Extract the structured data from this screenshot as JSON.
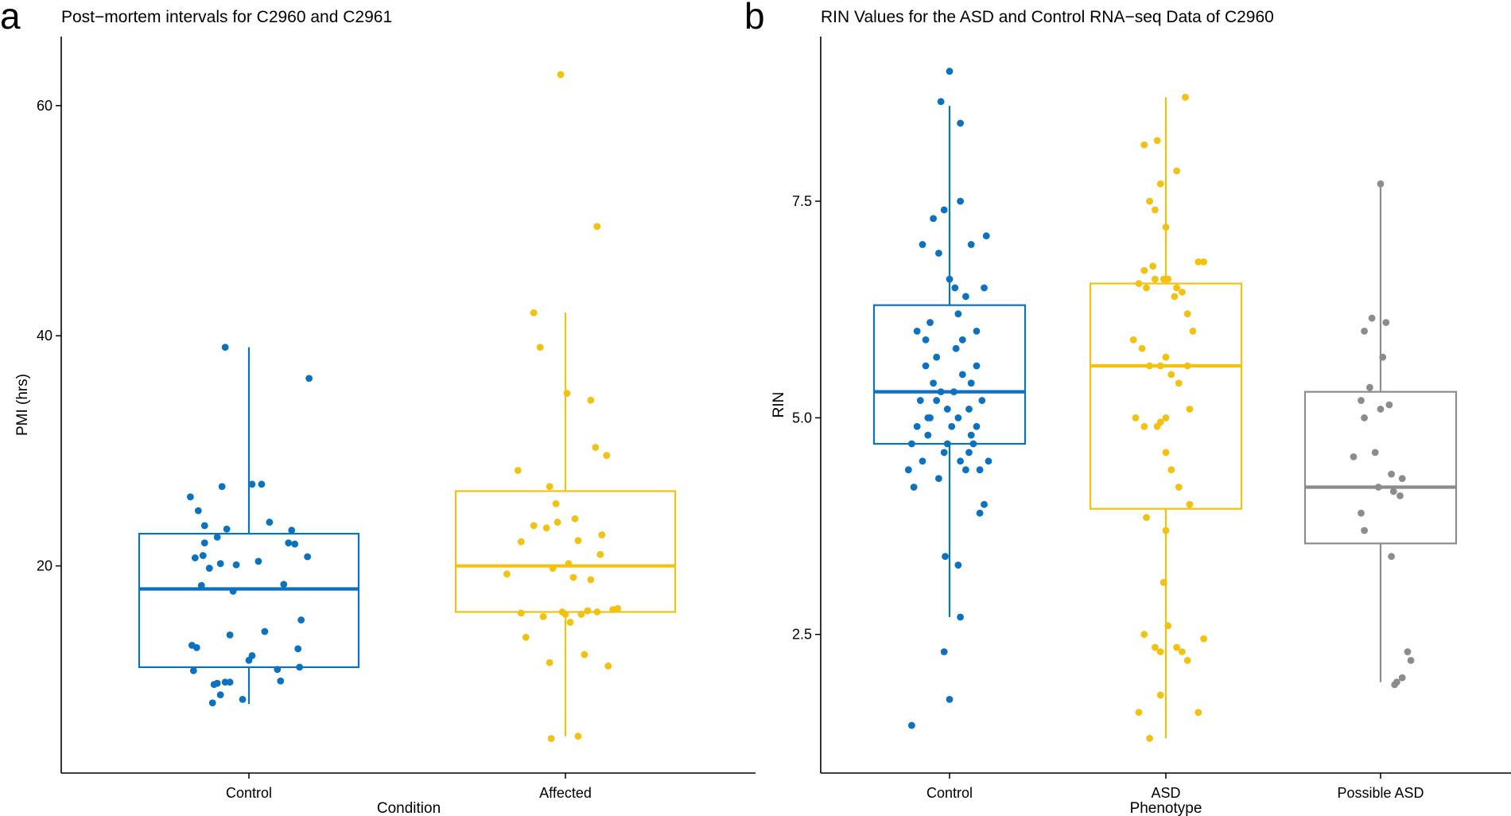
{
  "chart_data": [
    {
      "type": "box",
      "panel_label": "a",
      "title": "Post−mortem intervals for C2960 and C2961",
      "xlabel": "Condition",
      "ylabel": "PMI (hrs)",
      "ylim": [
        2,
        66
      ],
      "yticks": [
        20,
        40,
        60
      ],
      "ytick_labels": [
        "20",
        "40",
        "60"
      ],
      "grid": false,
      "categories": [
        "Control",
        "Affected"
      ],
      "colors": [
        "#0a72c0",
        "#f3c10f"
      ],
      "boxes": [
        {
          "category": "Control",
          "whisker_low": 8.0,
          "q1": 11.2,
          "median": 18.0,
          "q3": 22.8,
          "whisker_high": 39.0
        },
        {
          "category": "Affected",
          "whisker_low": 5.2,
          "q1": 16.0,
          "median": 20.0,
          "q3": 26.5,
          "whisker_high": 42.0
        }
      ],
      "points": [
        [
          [
            -0.37,
            26.0
          ],
          [
            -0.36,
            13.1
          ],
          [
            -0.34,
            20.7
          ],
          [
            -0.33,
            12.9
          ],
          [
            -0.32,
            24.8
          ],
          [
            -0.3,
            18.3
          ],
          [
            -0.29,
            20.9
          ],
          [
            -0.28,
            23.5
          ],
          [
            -0.25,
            19.8
          ],
          [
            -0.2,
            22.5
          ],
          [
            -0.18,
            20.2
          ],
          [
            -0.17,
            26.9
          ],
          [
            -0.14,
            23.2
          ],
          [
            -0.12,
            14.0
          ],
          [
            -0.1,
            17.8
          ],
          [
            -0.08,
            20.1
          ],
          [
            0.02,
            12.2
          ],
          [
            0.0,
            11.8
          ],
          [
            0.02,
            27.1
          ],
          [
            0.06,
            20.4
          ],
          [
            0.08,
            27.1
          ],
          [
            0.1,
            14.3
          ],
          [
            0.13,
            23.8
          ],
          [
            0.18,
            11.0
          ],
          [
            0.22,
            18.4
          ],
          [
            0.2,
            10.0
          ],
          [
            0.25,
            22.0
          ],
          [
            0.27,
            23.1
          ],
          [
            0.29,
            21.9
          ],
          [
            0.31,
            12.8
          ],
          [
            0.32,
            11.2
          ],
          [
            0.33,
            15.3
          ],
          [
            0.37,
            20.8
          ],
          [
            0.38,
            36.3
          ],
          [
            -0.28,
            22.0
          ],
          [
            -0.2,
            9.8
          ],
          [
            -0.15,
            9.9
          ],
          [
            -0.18,
            8.8
          ],
          [
            -0.12,
            9.9
          ],
          [
            -0.04,
            8.4
          ],
          [
            -0.23,
            8.1
          ],
          [
            -0.35,
            10.9
          ],
          [
            -0.22,
            9.7
          ],
          [
            -0.15,
            39.0
          ]
        ],
        [
          [
            -0.37,
            19.3
          ],
          [
            -0.3,
            28.3
          ],
          [
            -0.28,
            22.1
          ],
          [
            -0.28,
            15.9
          ],
          [
            -0.25,
            13.8
          ],
          [
            -0.2,
            42.0
          ],
          [
            -0.16,
            39.0
          ],
          [
            -0.14,
            15.6
          ],
          [
            -0.1,
            26.9
          ],
          [
            -0.1,
            11.6
          ],
          [
            -0.06,
            25.4
          ],
          [
            -0.08,
            19.8
          ],
          [
            -0.05,
            23.8
          ],
          [
            -0.12,
            23.3
          ],
          [
            -0.02,
            16.0
          ],
          [
            0.0,
            15.8
          ],
          [
            0.01,
            35.0
          ],
          [
            0.02,
            20.2
          ],
          [
            0.05,
            19.0
          ],
          [
            0.06,
            24.1
          ],
          [
            0.03,
            15.1
          ],
          [
            0.08,
            22.2
          ],
          [
            0.1,
            15.8
          ],
          [
            0.12,
            12.3
          ],
          [
            0.16,
            18.8
          ],
          [
            0.16,
            34.4
          ],
          [
            0.2,
            49.5
          ],
          [
            0.2,
            16.0
          ],
          [
            0.19,
            30.3
          ],
          [
            0.22,
            21.0
          ],
          [
            0.26,
            29.6
          ],
          [
            0.27,
            11.3
          ],
          [
            0.3,
            16.2
          ],
          [
            0.33,
            16.3
          ],
          [
            -0.2,
            23.5
          ],
          [
            0.14,
            16.1
          ],
          [
            -0.03,
            62.7
          ],
          [
            -0.09,
            5.0
          ],
          [
            0.08,
            5.2
          ],
          [
            0.23,
            22.7
          ]
        ]
      ]
    },
    {
      "type": "box",
      "panel_label": "b",
      "title": "RIN Values for the ASD and Control RNA−seq Data of C2960",
      "xlabel": "Phenotype",
      "ylabel": "RIN",
      "ylim": [
        0.9,
        9.4
      ],
      "yticks": [
        2.5,
        5.0,
        7.5
      ],
      "ytick_labels": [
        "2.5",
        "5.0",
        "7.5"
      ],
      "grid": false,
      "categories": [
        "Control",
        "ASD",
        "Possible ASD"
      ],
      "colors": [
        "#0a72c0",
        "#f3c10f",
        "#8c8c8c"
      ],
      "boxes": [
        {
          "category": "Control",
          "whisker_low": 2.7,
          "q1": 4.7,
          "median": 5.3,
          "q3": 6.3,
          "whisker_high": 8.6
        },
        {
          "category": "ASD",
          "whisker_low": 1.3,
          "q1": 3.95,
          "median": 5.6,
          "q3": 6.55,
          "whisker_high": 8.7
        },
        {
          "category": "Possible ASD",
          "whisker_low": 1.95,
          "q1": 3.55,
          "median": 4.2,
          "q3": 5.3,
          "whisker_high": 7.7
        }
      ],
      "points": [
        [
          [
            0.0,
            9.0
          ],
          [
            -0.08,
            8.65
          ],
          [
            0.1,
            8.4
          ],
          [
            -0.38,
            4.4
          ],
          [
            -0.35,
            4.7
          ],
          [
            -0.3,
            4.9
          ],
          [
            -0.33,
            4.2
          ],
          [
            -0.27,
            5.2
          ],
          [
            -0.25,
            4.5
          ],
          [
            -0.22,
            5.6
          ],
          [
            -0.2,
            4.8
          ],
          [
            -0.18,
            5.0
          ],
          [
            -0.15,
            5.4
          ],
          [
            -0.12,
            5.7
          ],
          [
            -0.1,
            4.3
          ],
          [
            -0.08,
            5.3
          ],
          [
            -0.05,
            4.6
          ],
          [
            -0.02,
            5.1
          ],
          [
            0.0,
            6.6
          ],
          [
            0.02,
            4.9
          ],
          [
            0.04,
            5.3
          ],
          [
            0.06,
            5.8
          ],
          [
            0.08,
            6.2
          ],
          [
            0.1,
            4.5
          ],
          [
            0.12,
            5.5
          ],
          [
            0.15,
            4.4
          ],
          [
            0.18,
            4.6
          ],
          [
            0.2,
            5.4
          ],
          [
            0.22,
            4.7
          ],
          [
            0.25,
            5.6
          ],
          [
            0.28,
            4.4
          ],
          [
            0.3,
            5.2
          ],
          [
            0.32,
            6.5
          ],
          [
            0.34,
            7.1
          ],
          [
            0.36,
            4.5
          ],
          [
            -0.25,
            7.0
          ],
          [
            -0.15,
            7.3
          ],
          [
            -0.05,
            7.4
          ],
          [
            0.1,
            7.5
          ],
          [
            0.2,
            7.0
          ],
          [
            -0.1,
            6.9
          ],
          [
            0.05,
            6.5
          ],
          [
            0.15,
            6.4
          ],
          [
            -0.18,
            6.1
          ],
          [
            -0.3,
            6.0
          ],
          [
            0.25,
            6.0
          ],
          [
            0.12,
            5.9
          ],
          [
            -0.22,
            5.9
          ],
          [
            0.08,
            5.0
          ],
          [
            -0.12,
            5.2
          ],
          [
            0.18,
            5.1
          ],
          [
            -0.02,
            4.7
          ],
          [
            0.0,
            1.75
          ],
          [
            -0.05,
            2.3
          ],
          [
            -0.35,
            1.45
          ],
          [
            0.1,
            2.7
          ],
          [
            -0.04,
            3.4
          ],
          [
            0.08,
            3.3
          ],
          [
            0.28,
            3.9
          ],
          [
            0.25,
            4.9
          ],
          [
            -0.2,
            5.0
          ],
          [
            0.2,
            4.8
          ],
          [
            0.32,
            4.0
          ]
        ],
        [
          [
            0.18,
            8.7
          ],
          [
            -0.2,
            8.15
          ],
          [
            -0.08,
            8.2
          ],
          [
            0.1,
            7.85
          ],
          [
            -0.05,
            7.7
          ],
          [
            -0.15,
            7.5
          ],
          [
            -0.1,
            7.4
          ],
          [
            0.0,
            7.2
          ],
          [
            0.3,
            6.8
          ],
          [
            0.35,
            6.8
          ],
          [
            -0.12,
            6.75
          ],
          [
            -0.2,
            6.7
          ],
          [
            -0.25,
            6.55
          ],
          [
            -0.18,
            6.5
          ],
          [
            -0.1,
            6.6
          ],
          [
            -0.02,
            6.6
          ],
          [
            0.02,
            6.6
          ],
          [
            0.1,
            6.5
          ],
          [
            0.15,
            6.45
          ],
          [
            0.2,
            6.2
          ],
          [
            0.25,
            6.0
          ],
          [
            -0.3,
            5.9
          ],
          [
            -0.22,
            5.8
          ],
          [
            -0.15,
            5.6
          ],
          [
            -0.05,
            5.6
          ],
          [
            0.0,
            5.7
          ],
          [
            0.05,
            5.5
          ],
          [
            0.12,
            5.4
          ],
          [
            0.2,
            5.6
          ],
          [
            0.22,
            5.1
          ],
          [
            -0.28,
            5.0
          ],
          [
            -0.2,
            4.9
          ],
          [
            -0.08,
            4.9
          ],
          [
            -0.05,
            4.95
          ],
          [
            0.0,
            4.6
          ],
          [
            0.05,
            4.4
          ],
          [
            0.12,
            4.2
          ],
          [
            0.22,
            4.0
          ],
          [
            -0.18,
            3.85
          ],
          [
            0.0,
            3.7
          ],
          [
            0.02,
            2.6
          ],
          [
            -0.2,
            2.5
          ],
          [
            -0.1,
            2.35
          ],
          [
            -0.05,
            2.3
          ],
          [
            0.1,
            2.35
          ],
          [
            0.15,
            2.3
          ],
          [
            0.2,
            2.2
          ],
          [
            0.35,
            2.45
          ],
          [
            -0.25,
            1.6
          ],
          [
            -0.05,
            1.8
          ],
          [
            0.3,
            1.6
          ],
          [
            -0.15,
            1.3
          ],
          [
            0.0,
            5.0
          ],
          [
            -0.02,
            3.1
          ],
          [
            0.08,
            6.4
          ]
        ],
        [
          [
            0.0,
            7.7
          ],
          [
            -0.08,
            6.15
          ],
          [
            0.05,
            6.1
          ],
          [
            -0.15,
            6.0
          ],
          [
            0.02,
            5.7
          ],
          [
            -0.1,
            5.35
          ],
          [
            0.08,
            5.15
          ],
          [
            -0.18,
            5.2
          ],
          [
            0.0,
            5.1
          ],
          [
            -0.15,
            5.0
          ],
          [
            0.2,
            4.3
          ],
          [
            -0.05,
            4.6
          ],
          [
            0.1,
            4.35
          ],
          [
            -0.02,
            4.2
          ],
          [
            0.12,
            4.15
          ],
          [
            0.18,
            4.1
          ],
          [
            -0.18,
            3.9
          ],
          [
            -0.15,
            3.7
          ],
          [
            0.1,
            3.4
          ],
          [
            0.25,
            2.3
          ],
          [
            0.28,
            2.2
          ],
          [
            0.2,
            2.0
          ],
          [
            0.15,
            1.95
          ],
          [
            0.13,
            1.92
          ],
          [
            -0.25,
            4.55
          ]
        ]
      ]
    }
  ]
}
